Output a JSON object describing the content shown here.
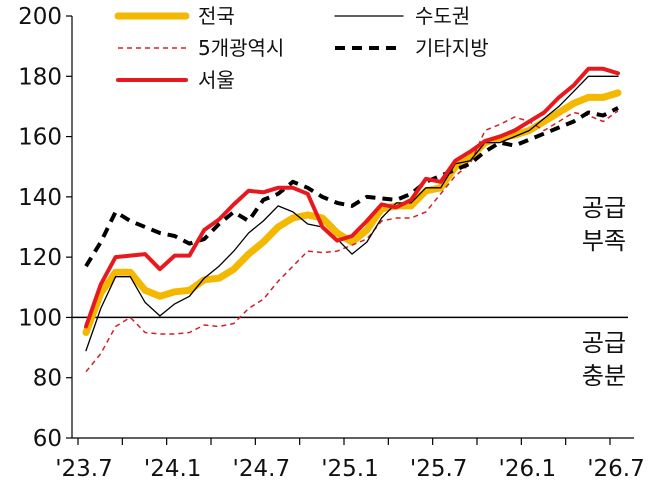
{
  "chart_data": {
    "type": "line",
    "title": "",
    "xlabel": "",
    "ylabel": "",
    "ylim": [
      60,
      200
    ],
    "yticks": [
      60,
      80,
      100,
      120,
      140,
      160,
      180,
      200
    ],
    "x_tick_labels": [
      "'23.7",
      "'24.1",
      "'24.7",
      "'25.1",
      "'25.7",
      "'26.1",
      "'26.7"
    ],
    "x": [
      "'23.7",
      "'23.8",
      "'23.9",
      "'23.10",
      "'23.11",
      "'23.12",
      "'24.1",
      "'24.2",
      "'24.3",
      "'24.4",
      "'24.5",
      "'24.6",
      "'24.7",
      "'24.8",
      "'24.9",
      "'24.10",
      "'24.11",
      "'24.12",
      "'25.1",
      "'25.2",
      "'25.3",
      "'25.4",
      "'25.5",
      "'25.6",
      "'25.7",
      "'25.8",
      "'25.9",
      "'25.10",
      "'25.11",
      "'25.12",
      "'26.1",
      "'26.2",
      "'26.3",
      "'26.4",
      "'26.5",
      "'26.6",
      "'26.7"
    ],
    "reference_line": 100,
    "grid": false,
    "legend_position": "top",
    "annotations": [
      {
        "text": [
          "공급",
          "부족"
        ]
      },
      {
        "text": [
          "공급",
          "충분"
        ]
      }
    ],
    "series": [
      {
        "name": "전국",
        "color": "#F5B800",
        "style": "solid-thick",
        "values": [
          95,
          108,
          115,
          115,
          109,
          107,
          108.5,
          109,
          112.5,
          113,
          116,
          121,
          125,
          130,
          133,
          134,
          133,
          128,
          125,
          129,
          136,
          137,
          137,
          142,
          143,
          150,
          153,
          158,
          159.5,
          160.5,
          162,
          165,
          168,
          171,
          173,
          173,
          174.5
        ]
      },
      {
        "name": "수도권",
        "color": "#000000",
        "style": "solid-thin",
        "values": [
          89,
          103,
          113.5,
          113.5,
          105,
          100.5,
          104.5,
          107,
          113,
          117,
          122,
          128,
          132,
          137,
          135,
          131,
          130,
          126,
          121,
          125,
          133,
          138,
          138,
          143,
          143,
          151,
          152,
          158,
          158,
          160,
          162,
          166,
          170,
          175,
          180,
          180,
          180
        ]
      },
      {
        "name": "5개광역시",
        "color": "#D32027",
        "style": "dashed-thin",
        "values": [
          82,
          88,
          97,
          100,
          95,
          94.5,
          94.5,
          95,
          97.5,
          97,
          98,
          103,
          106,
          112,
          117,
          122,
          121.5,
          122,
          124,
          126,
          132,
          133,
          133,
          135,
          141,
          147,
          151,
          162,
          164,
          166.5,
          165,
          162,
          165,
          168,
          167,
          165,
          168.5
        ]
      },
      {
        "name": "기타지방",
        "color": "#000000",
        "style": "dashed-thick",
        "values": [
          117,
          125,
          135,
          132,
          130,
          128,
          127,
          124.5,
          126,
          131,
          135,
          132,
          139,
          141,
          145,
          143,
          140,
          138,
          137,
          140,
          139.5,
          139,
          141,
          145,
          147,
          149,
          151,
          155,
          158,
          157,
          159,
          161,
          163,
          165,
          168,
          167,
          169.5
        ]
      },
      {
        "name": "서울",
        "color": "#E8191E",
        "style": "solid-medium",
        "values": [
          97,
          111,
          120,
          120.5,
          121,
          116,
          120.5,
          120.5,
          129,
          132.5,
          137.5,
          142,
          141.5,
          143,
          143,
          141,
          130,
          125.5,
          127,
          132,
          137.5,
          136.5,
          139,
          146,
          145,
          152,
          155,
          158.5,
          160,
          162,
          165,
          168,
          173,
          177,
          182.5,
          182.5,
          181
        ]
      }
    ]
  }
}
